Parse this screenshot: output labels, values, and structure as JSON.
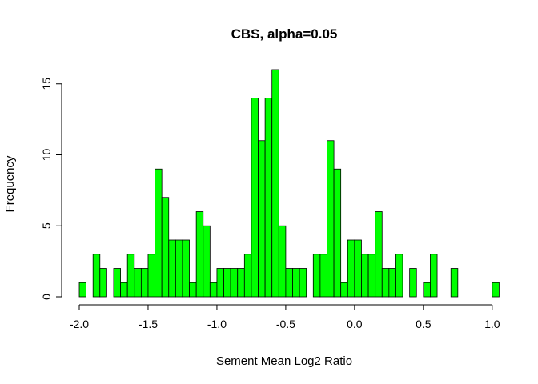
{
  "chart_data": {
    "type": "bar",
    "title": "CBS, alpha=0.05",
    "xlabel": "Sement Mean Log2 Ratio",
    "ylabel": "Frequency",
    "bar_color": "#00ff00",
    "bin_start": -2.0,
    "bin_width": 0.05,
    "xlim": [
      -2.0,
      1.1
    ],
    "ylim": [
      0,
      16
    ],
    "x_ticks": [
      -2.0,
      -1.5,
      -1.0,
      -0.5,
      0.0,
      0.5,
      1.0
    ],
    "x_tick_labels": [
      "-2.0",
      "-1.5",
      "-1.0",
      "-0.5",
      "0.0",
      "0.5",
      "1.0"
    ],
    "y_ticks": [
      0,
      5,
      10,
      15
    ],
    "y_tick_labels": [
      "0",
      "5",
      "10",
      "15"
    ],
    "values": [
      1,
      0,
      3,
      2,
      0,
      2,
      1,
      3,
      2,
      2,
      3,
      9,
      7,
      4,
      4,
      4,
      1,
      6,
      5,
      1,
      2,
      2,
      2,
      2,
      3,
      14,
      11,
      14,
      16,
      5,
      2,
      2,
      2,
      0,
      3,
      3,
      11,
      9,
      1,
      4,
      4,
      3,
      3,
      6,
      2,
      2,
      3,
      0,
      2,
      0,
      1,
      3,
      0,
      0,
      2,
      0,
      0,
      0,
      0,
      0,
      1,
      0
    ]
  }
}
